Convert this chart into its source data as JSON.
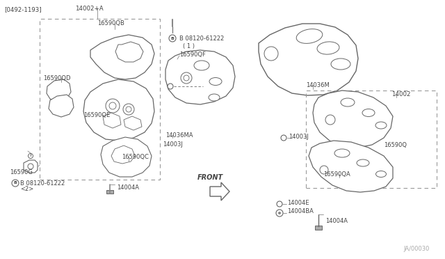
{
  "bg_color": "#ffffff",
  "line_color": "#666666",
  "text_color": "#444444",
  "fig_width": 6.4,
  "fig_height": 3.72,
  "dpi": 100,
  "labels": {
    "top_left_date": "[0492-1193]",
    "top_left_part": "14002+A",
    "box1_QB": "16590QB",
    "box1_QD": "16590QD",
    "box1_QE": "16590QE",
    "box1_QC": "16590QC",
    "box1_bolt": "14004A",
    "left_G": "16590G",
    "left_B_label": "B 08120-61222",
    "left_B_num": "<2>",
    "center_B_label": "B 08120-61222",
    "center_B_num": "( 1 )",
    "center_F": "16590QF",
    "center_36MA": "14036MA",
    "center_3J": "14003J",
    "right_36M": "14036M",
    "right_14002": "14002",
    "right_3J": "14003J",
    "right_165900": "16590Q",
    "right_165900A": "16590QA",
    "bottom_4E": "14004E",
    "bottom_4BA": "14004BA",
    "bottom_4A": "14004A",
    "front_label": "FRONT",
    "diagram_num": "JA/00030"
  }
}
